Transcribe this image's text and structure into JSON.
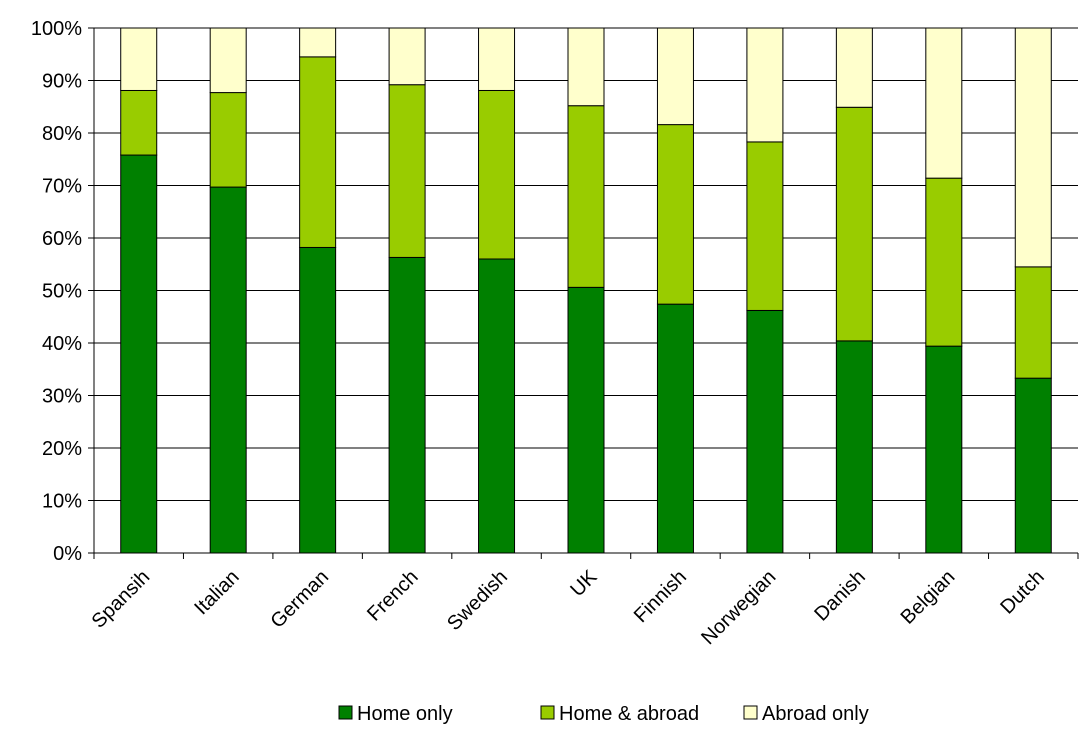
{
  "chart_data": {
    "type": "bar",
    "stacked": true,
    "percent_stacked": true,
    "categories": [
      "Spansih",
      "Italian",
      "German",
      "French",
      "Swedish",
      "UK",
      "Finnish",
      "Norwegian",
      "Danish",
      "Belgian",
      "Dutch"
    ],
    "series": [
      {
        "name": "Home only",
        "color": "#008000",
        "values": [
          75.8,
          69.7,
          58.2,
          56.3,
          56.0,
          50.6,
          47.4,
          46.2,
          40.4,
          39.4,
          33.3
        ]
      },
      {
        "name": "Home & abroad",
        "color": "#99cc00",
        "values": [
          12.3,
          18.0,
          36.3,
          32.9,
          32.1,
          34.6,
          34.2,
          32.1,
          44.5,
          32.0,
          21.2
        ]
      },
      {
        "name": "Abroad only",
        "color": "#ffffcc",
        "values": [
          11.9,
          12.3,
          5.5,
          10.8,
          11.9,
          14.8,
          18.4,
          21.7,
          15.1,
          28.6,
          45.5
        ]
      }
    ],
    "y_ticks": [
      "0%",
      "10%",
      "20%",
      "30%",
      "40%",
      "50%",
      "60%",
      "70%",
      "80%",
      "90%",
      "100%"
    ],
    "ylim": [
      0,
      100
    ],
    "grid": true,
    "legend_position": "bottom-center",
    "title": "",
    "xlabel": "",
    "ylabel": ""
  }
}
